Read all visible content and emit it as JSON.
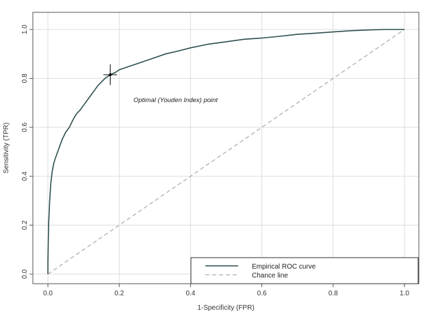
{
  "chart_data": {
    "type": "line",
    "title": "",
    "xlabel": "1-Specificity (FPR)",
    "ylabel": "Sensitivity (TPR)",
    "xlim": [
      0.0,
      1.0
    ],
    "ylim": [
      0.0,
      1.0
    ],
    "grid": true,
    "x_ticks": [
      "0.0",
      "0.2",
      "0.4",
      "0.6",
      "0.8",
      "1.0"
    ],
    "y_ticks": [
      "0.0",
      "0.2",
      "0.4",
      "0.6",
      "0.8",
      "1.0"
    ],
    "series": [
      {
        "name": "Empirical ROC curve",
        "color": "#2f4f4f",
        "style": "solid",
        "x": [
          0.0,
          0.0,
          0.002,
          0.005,
          0.008,
          0.012,
          0.016,
          0.02,
          0.025,
          0.03,
          0.04,
          0.05,
          0.06,
          0.07,
          0.08,
          0.09,
          0.1,
          0.11,
          0.12,
          0.13,
          0.14,
          0.15,
          0.16,
          0.175,
          0.19,
          0.2,
          0.22,
          0.25,
          0.28,
          0.3,
          0.33,
          0.36,
          0.4,
          0.45,
          0.5,
          0.55,
          0.6,
          0.65,
          0.7,
          0.75,
          0.8,
          0.85,
          0.9,
          0.95,
          1.0
        ],
        "y": [
          0.0,
          0.05,
          0.2,
          0.3,
          0.37,
          0.42,
          0.45,
          0.47,
          0.49,
          0.51,
          0.55,
          0.58,
          0.6,
          0.63,
          0.655,
          0.67,
          0.69,
          0.71,
          0.73,
          0.75,
          0.77,
          0.785,
          0.8,
          0.815,
          0.825,
          0.835,
          0.845,
          0.86,
          0.875,
          0.885,
          0.9,
          0.91,
          0.925,
          0.94,
          0.95,
          0.96,
          0.965,
          0.972,
          0.98,
          0.985,
          0.99,
          0.995,
          0.998,
          1.0,
          1.0
        ]
      },
      {
        "name": "Chance line",
        "color": "#aaaaaa",
        "style": "dashed",
        "x": [
          0.0,
          1.0
        ],
        "y": [
          0.0,
          1.0
        ]
      }
    ],
    "optimal_point": {
      "x": 0.175,
      "y": 0.815
    },
    "annotation": "Optimal (Youden Index) point",
    "legend": {
      "placement": "bottom-right",
      "entries": [
        "Empirical ROC curve",
        "Chance line"
      ]
    }
  }
}
